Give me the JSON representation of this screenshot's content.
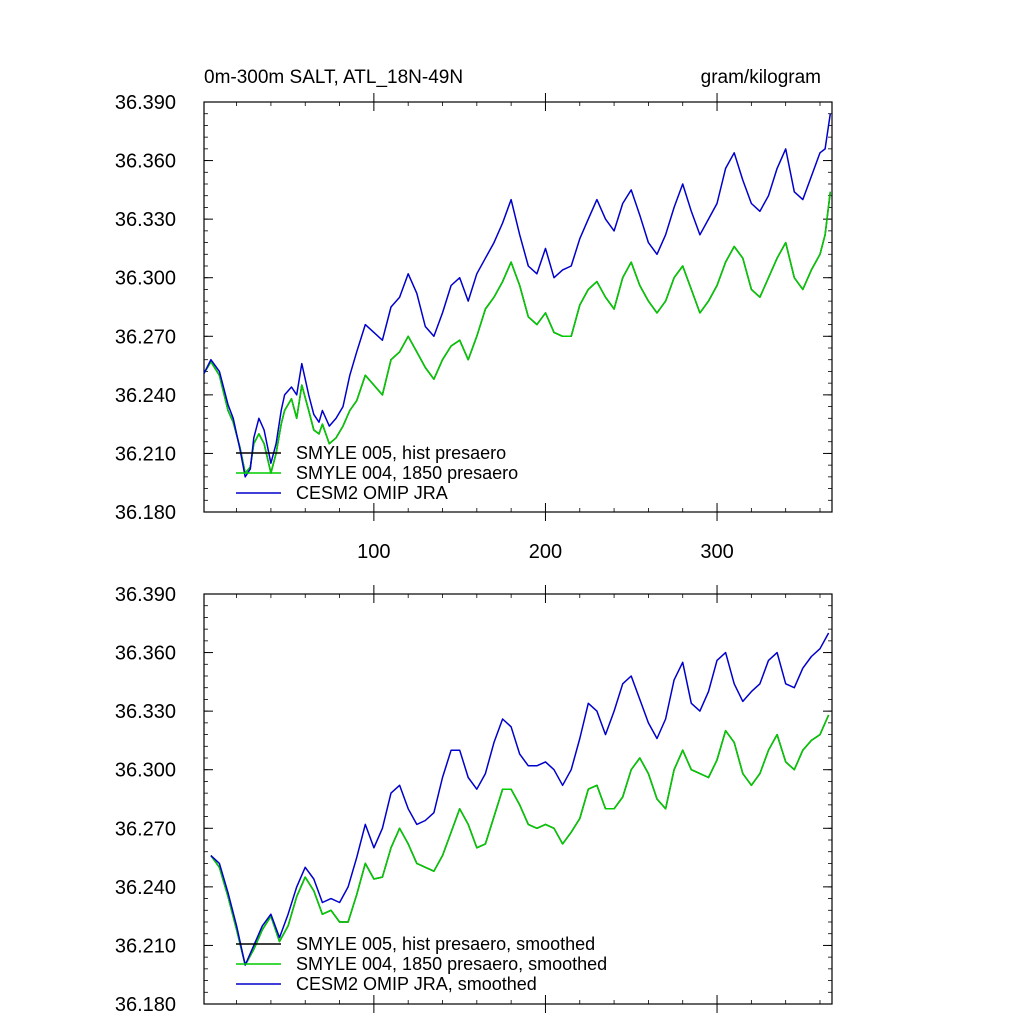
{
  "header": {
    "title": "0m-300m SALT, ATL_18N-49N",
    "units": "gram/kilogram"
  },
  "colors": {
    "smyle005": "#000000",
    "smyle004": "#00cc00",
    "omip": "#0000cc",
    "axis": "#000000"
  },
  "chart_data": [
    {
      "type": "line",
      "xlim": [
        1,
        367
      ],
      "ylim": [
        36.18,
        36.39
      ],
      "x_ticks": [
        100,
        200,
        300
      ],
      "y_ticks": [
        "36.390",
        "36.360",
        "36.330",
        "36.300",
        "36.270",
        "36.240",
        "36.210",
        "36.180"
      ],
      "legend": [
        "SMYLE 005, hist presaero",
        "SMYLE 004, 1850 presaero",
        "CESM2 OMIP JRA"
      ],
      "series": [
        {
          "name": "SMYLE 005, hist presaero",
          "x": [
            1,
            5,
            10,
            15,
            18,
            22,
            25,
            28,
            30,
            33,
            36,
            40,
            43,
            46,
            48,
            52,
            55,
            58,
            62,
            65,
            68,
            70,
            74,
            78,
            82,
            86,
            90,
            95,
            100,
            105,
            110,
            115,
            120,
            125,
            130,
            135,
            140,
            145,
            150,
            155,
            160,
            165,
            170,
            175,
            180,
            185,
            190,
            195,
            200,
            205,
            210,
            215,
            220,
            225,
            230,
            235,
            240,
            245,
            250,
            255,
            260,
            265,
            270,
            275,
            280,
            285,
            290,
            295,
            300,
            305,
            310,
            315,
            320,
            325,
            330,
            335,
            340,
            345,
            350,
            355,
            360,
            363,
            366
          ],
          "y": [
            36.251,
            36.257,
            36.25,
            36.232,
            36.226,
            36.213,
            36.2,
            36.203,
            36.215,
            36.22,
            36.215,
            36.2,
            36.21,
            36.225,
            36.232,
            36.238,
            36.228,
            36.245,
            36.232,
            36.222,
            36.22,
            36.225,
            36.215,
            36.218,
            36.224,
            36.232,
            36.237,
            36.25,
            36.245,
            36.24,
            36.258,
            36.262,
            36.27,
            36.262,
            36.254,
            36.248,
            36.258,
            36.265,
            36.268,
            36.258,
            36.27,
            36.284,
            36.29,
            36.298,
            36.308,
            36.296,
            36.28,
            36.276,
            36.282,
            36.272,
            36.27,
            36.27,
            36.286,
            36.294,
            36.298,
            36.29,
            36.284,
            36.3,
            36.308,
            36.296,
            36.288,
            36.282,
            36.288,
            36.3,
            36.306,
            36.294,
            36.282,
            36.288,
            36.296,
            36.308,
            36.316,
            36.31,
            36.294,
            36.29,
            36.3,
            36.31,
            36.318,
            36.3,
            36.294,
            36.304,
            36.312,
            36.322,
            36.344
          ]
        },
        {
          "name": "SMYLE 004, 1850 presaero",
          "x": [
            1,
            5,
            10,
            15,
            18,
            22,
            25,
            28,
            30,
            33,
            36,
            40,
            43,
            46,
            48,
            52,
            55,
            58,
            62,
            65,
            68,
            70,
            74,
            78,
            82,
            86,
            90,
            95,
            100,
            105,
            110,
            115,
            120,
            125,
            130,
            135,
            140,
            145,
            150,
            155,
            160,
            165,
            170,
            175,
            180,
            185,
            190,
            195,
            200,
            205,
            210,
            215,
            220,
            225,
            230,
            235,
            240,
            245,
            250,
            255,
            260,
            265,
            270,
            275,
            280,
            285,
            290,
            295,
            300,
            305,
            310,
            315,
            320,
            325,
            330,
            335,
            340,
            345,
            350,
            355,
            360,
            363,
            366
          ],
          "y": [
            36.251,
            36.257,
            36.25,
            36.232,
            36.226,
            36.213,
            36.2,
            36.203,
            36.215,
            36.22,
            36.215,
            36.2,
            36.21,
            36.225,
            36.232,
            36.238,
            36.228,
            36.245,
            36.232,
            36.222,
            36.22,
            36.225,
            36.215,
            36.218,
            36.224,
            36.232,
            36.237,
            36.25,
            36.245,
            36.24,
            36.258,
            36.262,
            36.27,
            36.262,
            36.254,
            36.248,
            36.258,
            36.265,
            36.268,
            36.258,
            36.27,
            36.284,
            36.29,
            36.298,
            36.308,
            36.296,
            36.28,
            36.276,
            36.282,
            36.272,
            36.27,
            36.27,
            36.286,
            36.294,
            36.298,
            36.29,
            36.284,
            36.3,
            36.308,
            36.296,
            36.288,
            36.282,
            36.288,
            36.3,
            36.306,
            36.294,
            36.282,
            36.288,
            36.296,
            36.308,
            36.316,
            36.31,
            36.294,
            36.29,
            36.3,
            36.31,
            36.318,
            36.3,
            36.294,
            36.304,
            36.312,
            36.322,
            36.344
          ]
        },
        {
          "name": "CESM2 OMIP JRA",
          "x": [
            1,
            5,
            10,
            15,
            18,
            22,
            25,
            28,
            30,
            33,
            36,
            40,
            43,
            46,
            48,
            52,
            55,
            58,
            62,
            65,
            68,
            70,
            74,
            78,
            82,
            86,
            90,
            95,
            100,
            105,
            110,
            115,
            120,
            125,
            130,
            135,
            140,
            145,
            150,
            155,
            160,
            165,
            170,
            175,
            180,
            185,
            190,
            195,
            200,
            205,
            210,
            215,
            220,
            225,
            230,
            235,
            240,
            245,
            250,
            255,
            260,
            265,
            270,
            275,
            280,
            285,
            290,
            295,
            300,
            305,
            310,
            315,
            320,
            325,
            330,
            335,
            340,
            345,
            350,
            355,
            360,
            363,
            366
          ],
          "y": [
            36.251,
            36.258,
            36.252,
            36.235,
            36.228,
            36.212,
            36.198,
            36.202,
            36.218,
            36.228,
            36.222,
            36.205,
            36.215,
            36.232,
            36.24,
            36.244,
            36.24,
            36.256,
            36.24,
            36.23,
            36.226,
            36.232,
            36.224,
            36.228,
            36.234,
            36.25,
            36.262,
            36.276,
            36.272,
            36.268,
            36.285,
            36.29,
            36.302,
            36.292,
            36.275,
            36.27,
            36.282,
            36.296,
            36.3,
            36.288,
            36.302,
            36.31,
            36.318,
            36.328,
            36.34,
            36.322,
            36.306,
            36.302,
            36.315,
            36.3,
            36.304,
            36.306,
            36.32,
            36.33,
            36.34,
            36.33,
            36.324,
            36.338,
            36.345,
            36.332,
            36.318,
            36.312,
            36.322,
            36.336,
            36.348,
            36.334,
            36.322,
            36.33,
            36.338,
            36.356,
            36.364,
            36.35,
            36.338,
            36.334,
            36.342,
            36.356,
            36.366,
            36.344,
            36.34,
            36.352,
            36.364,
            36.366,
            36.384
          ]
        }
      ]
    },
    {
      "type": "line",
      "xlim": [
        1,
        367
      ],
      "ylim": [
        36.18,
        36.39
      ],
      "y_ticks": [
        "36.390",
        "36.360",
        "36.330",
        "36.300",
        "36.270",
        "36.240",
        "36.210",
        "36.180"
      ],
      "legend": [
        "SMYLE 005, hist presaero, smoothed",
        "SMYLE 004, 1850 presaero, smoothed",
        "CESM2 OMIP JRA, smoothed"
      ],
      "series": [
        {
          "name": "SMYLE 005, hist presaero, smoothed",
          "x": [
            5,
            10,
            15,
            20,
            25,
            30,
            35,
            40,
            45,
            50,
            55,
            60,
            65,
            70,
            75,
            80,
            85,
            90,
            95,
            100,
            105,
            110,
            115,
            120,
            125,
            130,
            135,
            140,
            145,
            150,
            155,
            160,
            165,
            170,
            175,
            180,
            185,
            190,
            195,
            200,
            205,
            210,
            215,
            220,
            225,
            230,
            235,
            240,
            245,
            250,
            255,
            260,
            265,
            270,
            275,
            280,
            285,
            290,
            295,
            300,
            305,
            310,
            315,
            320,
            325,
            330,
            335,
            340,
            345,
            350,
            355,
            360,
            365
          ],
          "y": [
            36.256,
            36.25,
            36.235,
            36.218,
            36.2,
            36.208,
            36.218,
            36.225,
            36.212,
            36.22,
            36.235,
            36.245,
            36.238,
            36.226,
            36.228,
            36.222,
            36.222,
            36.236,
            36.252,
            36.244,
            36.245,
            36.26,
            36.27,
            36.262,
            36.252,
            36.25,
            36.248,
            36.256,
            36.268,
            36.28,
            36.272,
            36.26,
            36.262,
            36.276,
            36.29,
            36.29,
            36.282,
            36.272,
            36.27,
            36.272,
            36.27,
            36.262,
            36.268,
            36.275,
            36.29,
            36.292,
            36.28,
            36.28,
            36.286,
            36.3,
            36.306,
            36.298,
            36.285,
            36.28,
            36.3,
            36.31,
            36.3,
            36.298,
            36.296,
            36.305,
            36.32,
            36.314,
            36.298,
            36.292,
            36.298,
            36.31,
            36.318,
            36.304,
            36.3,
            36.31,
            36.315,
            36.318,
            36.328
          ]
        },
        {
          "name": "SMYLE 004, 1850 presaero, smoothed",
          "x": [
            5,
            10,
            15,
            20,
            25,
            30,
            35,
            40,
            45,
            50,
            55,
            60,
            65,
            70,
            75,
            80,
            85,
            90,
            95,
            100,
            105,
            110,
            115,
            120,
            125,
            130,
            135,
            140,
            145,
            150,
            155,
            160,
            165,
            170,
            175,
            180,
            185,
            190,
            195,
            200,
            205,
            210,
            215,
            220,
            225,
            230,
            235,
            240,
            245,
            250,
            255,
            260,
            265,
            270,
            275,
            280,
            285,
            290,
            295,
            300,
            305,
            310,
            315,
            320,
            325,
            330,
            335,
            340,
            345,
            350,
            355,
            360,
            365
          ],
          "y": [
            36.256,
            36.25,
            36.235,
            36.218,
            36.2,
            36.208,
            36.218,
            36.225,
            36.212,
            36.22,
            36.235,
            36.245,
            36.238,
            36.226,
            36.228,
            36.222,
            36.222,
            36.236,
            36.252,
            36.244,
            36.245,
            36.26,
            36.27,
            36.262,
            36.252,
            36.25,
            36.248,
            36.256,
            36.268,
            36.28,
            36.272,
            36.26,
            36.262,
            36.276,
            36.29,
            36.29,
            36.282,
            36.272,
            36.27,
            36.272,
            36.27,
            36.262,
            36.268,
            36.275,
            36.29,
            36.292,
            36.28,
            36.28,
            36.286,
            36.3,
            36.306,
            36.298,
            36.285,
            36.28,
            36.3,
            36.31,
            36.3,
            36.298,
            36.296,
            36.305,
            36.32,
            36.314,
            36.298,
            36.292,
            36.298,
            36.31,
            36.318,
            36.304,
            36.3,
            36.31,
            36.315,
            36.318,
            36.328
          ]
        },
        {
          "name": "CESM2 OMIP JRA, smoothed",
          "x": [
            5,
            10,
            15,
            20,
            25,
            30,
            35,
            40,
            45,
            50,
            55,
            60,
            65,
            70,
            75,
            80,
            85,
            90,
            95,
            100,
            105,
            110,
            115,
            120,
            125,
            130,
            135,
            140,
            145,
            150,
            155,
            160,
            165,
            170,
            175,
            180,
            185,
            190,
            195,
            200,
            205,
            210,
            215,
            220,
            225,
            230,
            235,
            240,
            245,
            250,
            255,
            260,
            265,
            270,
            275,
            280,
            285,
            290,
            295,
            300,
            305,
            310,
            315,
            320,
            325,
            330,
            335,
            340,
            345,
            350,
            355,
            360,
            365
          ],
          "y": [
            36.256,
            36.252,
            36.237,
            36.22,
            36.2,
            36.21,
            36.22,
            36.226,
            36.214,
            36.226,
            36.24,
            36.25,
            36.244,
            36.232,
            36.234,
            36.232,
            36.24,
            36.255,
            36.272,
            36.26,
            36.27,
            36.288,
            36.292,
            36.28,
            36.272,
            36.274,
            36.278,
            36.296,
            36.31,
            36.31,
            36.296,
            36.29,
            36.298,
            36.314,
            36.326,
            36.322,
            36.308,
            36.302,
            36.302,
            36.304,
            36.3,
            36.292,
            36.3,
            36.316,
            36.334,
            36.33,
            36.318,
            36.33,
            36.344,
            36.348,
            36.336,
            36.324,
            36.316,
            36.326,
            36.346,
            36.355,
            36.334,
            36.33,
            36.34,
            36.356,
            36.36,
            36.344,
            36.335,
            36.34,
            36.344,
            36.356,
            36.36,
            36.344,
            36.342,
            36.352,
            36.358,
            36.362,
            36.37
          ]
        }
      ]
    }
  ]
}
